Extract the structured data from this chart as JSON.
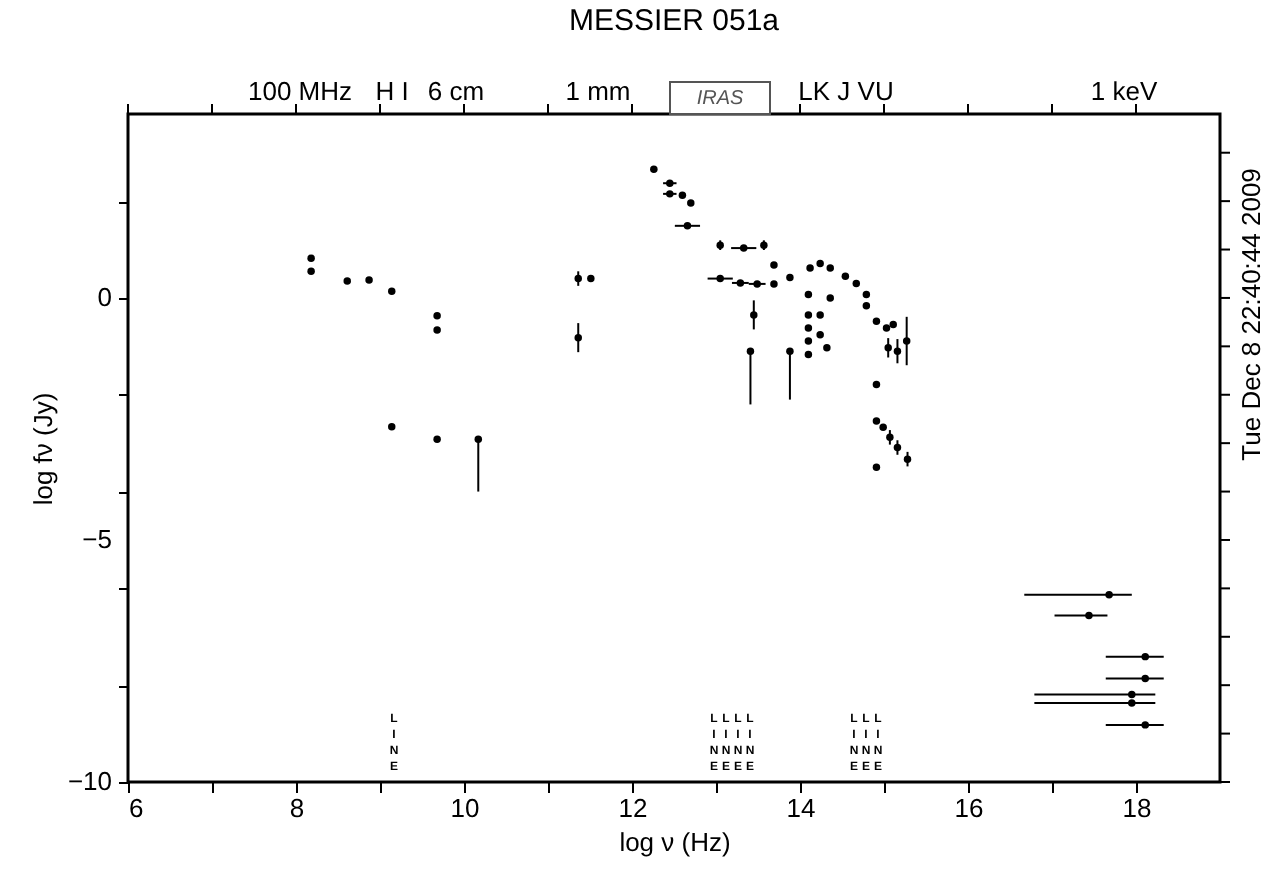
{
  "chart_data": {
    "type": "scatter",
    "title": "MESSIER 051a",
    "xlabel": "log ν (Hz)",
    "ylabel": "log fν (Jy)",
    "x": [
      8.18,
      8.18,
      8.61,
      8.87,
      9.14,
      9.68,
      9.68,
      9.14,
      9.68,
      10.17,
      11.36,
      11.51,
      11.36,
      12.26,
      12.45,
      12.45,
      12.6,
      12.7,
      12.66,
      13.05,
      13.33,
      13.57,
      13.69,
      13.05,
      13.29,
      13.49,
      13.69,
      13.88,
      13.45,
      13.41,
      13.88,
      14.12,
      14.24,
      14.36,
      14.54,
      14.67,
      14.79,
      14.79,
      14.1,
      14.1,
      14.1,
      14.1,
      14.1,
      14.24,
      14.24,
      14.32,
      14.36,
      14.91,
      15.03,
      15.11,
      15.05,
      15.16,
      15.27,
      14.91,
      14.91,
      14.99,
      15.07,
      15.16,
      15.28,
      14.91,
      17.68,
      17.44,
      18.11,
      18.11,
      17.95,
      17.95,
      18.11
    ],
    "values": [
      0.82,
      0.55,
      0.35,
      0.37,
      0.14,
      -0.37,
      -0.66,
      -2.66,
      -2.92,
      -2.92,
      0.4,
      0.4,
      -0.82,
      2.66,
      2.37,
      2.15,
      2.12,
      1.96,
      1.49,
      1.09,
      1.03,
      1.09,
      0.68,
      0.4,
      0.31,
      0.29,
      0.29,
      0.42,
      -0.35,
      -1.1,
      -1.1,
      0.62,
      0.71,
      0.62,
      0.45,
      0.3,
      0.07,
      -0.16,
      0.07,
      -0.35,
      -0.62,
      -0.89,
      -1.17,
      -0.35,
      -0.76,
      -1.03,
      0.0,
      -0.48,
      -0.62,
      -0.55,
      -1.03,
      -1.1,
      -0.89,
      -1.79,
      -2.54,
      -2.67,
      -2.88,
      -3.09,
      -3.33,
      -3.5,
      -6.13,
      -6.56,
      -7.41,
      -7.86,
      -8.19,
      -8.37,
      -8.82
    ],
    "errors": [
      null,
      null,
      null,
      null,
      null,
      null,
      null,
      null,
      null,
      [
        -4.0,
        -2.92
      ],
      0.15,
      null,
      0.3,
      null,
      null,
      null,
      null,
      null,
      null,
      0.1,
      null,
      0.1,
      null,
      null,
      null,
      null,
      null,
      null,
      0.3,
      [
        -2.2,
        -1.1
      ],
      [
        -2.1,
        -1.1
      ],
      null,
      null,
      null,
      null,
      null,
      null,
      null,
      null,
      null,
      null,
      null,
      null,
      null,
      null,
      null,
      null,
      null,
      null,
      null,
      0.2,
      0.25,
      0.5,
      null,
      null,
      null,
      0.15,
      0.15,
      0.15,
      null,
      null,
      null,
      null,
      null,
      null,
      null,
      null
    ],
    "xerrors": [
      null,
      null,
      null,
      null,
      null,
      null,
      null,
      null,
      null,
      null,
      null,
      null,
      null,
      null,
      0.08,
      0.08,
      null,
      null,
      0.15,
      null,
      0.15,
      null,
      null,
      0.15,
      0.1,
      0.1,
      null,
      null,
      null,
      null,
      null,
      null,
      null,
      null,
      null,
      null,
      null,
      null,
      null,
      null,
      null,
      null,
      null,
      null,
      null,
      null,
      null,
      null,
      null,
      null,
      null,
      null,
      null,
      null,
      null,
      null,
      null,
      null,
      null,
      null,
      [
        16.67,
        17.95
      ],
      [
        17.03,
        17.66
      ],
      [
        17.64,
        18.33
      ],
      [
        17.64,
        18.33
      ],
      [
        16.79,
        18.23
      ],
      [
        16.79,
        18.23
      ],
      [
        17.64,
        18.33
      ]
    ],
    "xlim": [
      6,
      19
    ],
    "ylim": [
      -10,
      3.8
    ],
    "xticks": [
      6,
      {
        "value": 7,
        "label": null
      },
      8,
      {
        "value": 9,
        "label": null
      },
      10,
      {
        "value": 11,
        "label": null
      },
      12,
      {
        "value": 13,
        "label": null
      },
      14,
      {
        "value": 15,
        "label": null
      },
      16,
      {
        "value": 17,
        "label": null
      },
      18
    ],
    "yticks": [
      -10,
      {
        "value": -9,
        "label": null
      },
      {
        "value": -8,
        "label": null
      },
      {
        "value": -7,
        "label": null
      },
      {
        "value": -6,
        "label": null
      },
      -5,
      {
        "value": -4,
        "label": null
      },
      {
        "value": -3,
        "label": null
      },
      {
        "value": -2,
        "label": null
      },
      {
        "value": -1,
        "label": null
      },
      0,
      {
        "value": 1,
        "label": null
      },
      {
        "value": 2,
        "label": null
      },
      {
        "value": 3,
        "label": null
      }
    ],
    "annotations": [
      "Tue Dec 8 22:40:44 2009",
      "100 MHz",
      "H I",
      "6 cm",
      "1 mm",
      "IRAS",
      "LK J VU",
      "1 keV",
      "LINE",
      "LINE",
      "LINE",
      "LINE",
      "LINE",
      "LINE",
      "LINE",
      "LINE"
    ],
    "marker": "circle"
  }
}
